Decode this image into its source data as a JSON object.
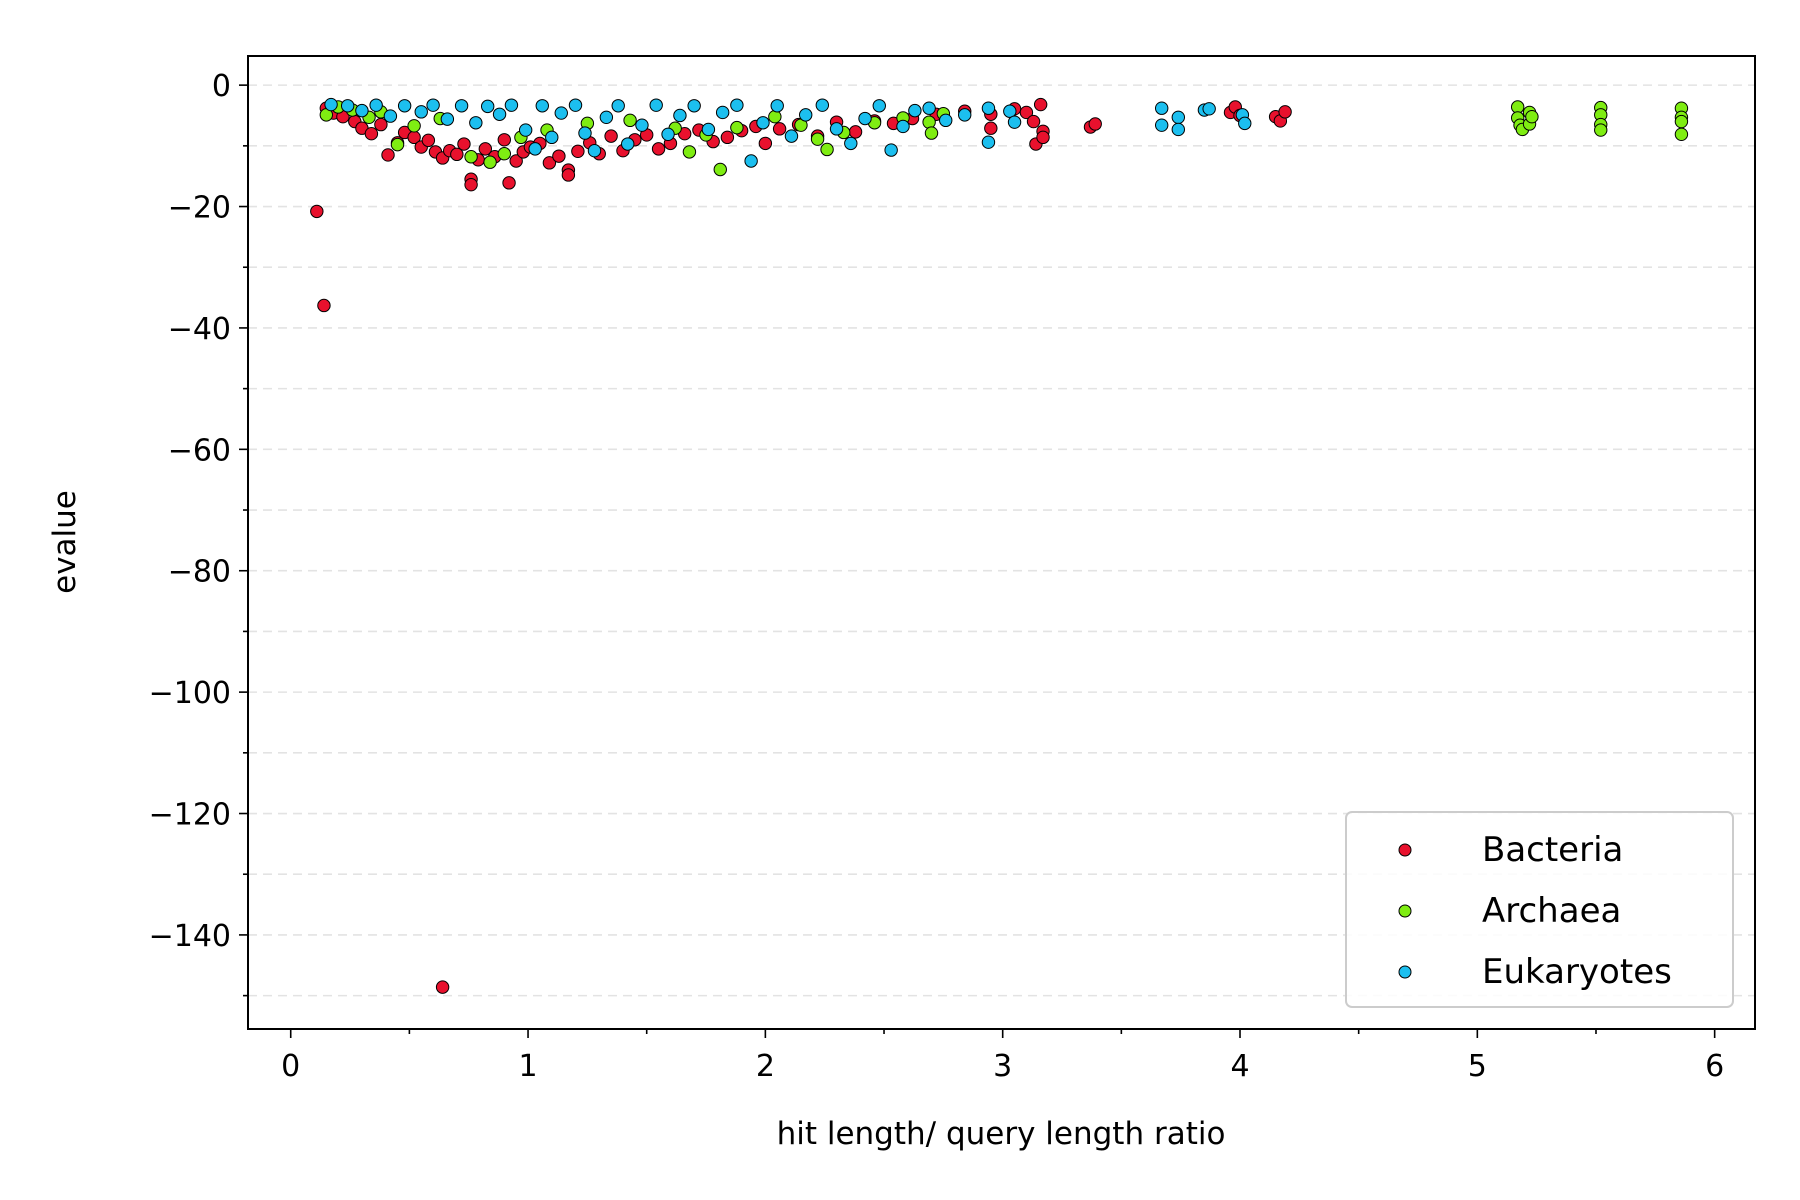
{
  "chart_data": {
    "type": "scatter",
    "xlabel": "hit length/ query length ratio",
    "ylabel": "evalue",
    "xlim": [
      -0.18,
      6.17
    ],
    "ylim": [
      -155.5,
      4.8
    ],
    "xticks": [
      0,
      1,
      2,
      3,
      4,
      5,
      6
    ],
    "xtick_labels": [
      "0",
      "1",
      "2",
      "3",
      "4",
      "5",
      "6"
    ],
    "yticks": [
      0,
      -20,
      -40,
      -60,
      -80,
      -100,
      -120,
      -140
    ],
    "ytick_labels": [
      "0",
      "−20",
      "−40",
      "−60",
      "−80",
      "−100",
      "−120",
      "−140"
    ],
    "grid": "dashed horizontal lines every 10",
    "legend_position": "lower right",
    "series": [
      {
        "name": "Bacteria",
        "color": "#e8112d",
        "points": [
          [
            0.11,
            -20.8
          ],
          [
            0.14,
            -36.3
          ],
          [
            0.64,
            -148.6
          ],
          [
            0.15,
            -3.8
          ],
          [
            0.18,
            -4.6
          ],
          [
            0.22,
            -5.2
          ],
          [
            0.27,
            -6.0
          ],
          [
            0.3,
            -7.1
          ],
          [
            0.34,
            -8.0
          ],
          [
            0.38,
            -6.5
          ],
          [
            0.41,
            -11.5
          ],
          [
            0.45,
            -9.5
          ],
          [
            0.48,
            -7.8
          ],
          [
            0.52,
            -8.6
          ],
          [
            0.55,
            -10.2
          ],
          [
            0.58,
            -9.1
          ],
          [
            0.61,
            -11.0
          ],
          [
            0.64,
            -12.0
          ],
          [
            0.67,
            -10.8
          ],
          [
            0.7,
            -11.4
          ],
          [
            0.73,
            -9.7
          ],
          [
            0.76,
            -15.5
          ],
          [
            0.76,
            -16.4
          ],
          [
            0.79,
            -12.3
          ],
          [
            0.82,
            -10.5
          ],
          [
            0.86,
            -11.8
          ],
          [
            0.9,
            -9.0
          ],
          [
            0.92,
            -16.1
          ],
          [
            0.95,
            -12.5
          ],
          [
            0.98,
            -11.0
          ],
          [
            1.01,
            -10.2
          ],
          [
            1.05,
            -9.6
          ],
          [
            1.09,
            -12.8
          ],
          [
            1.13,
            -11.7
          ],
          [
            1.17,
            -14.0
          ],
          [
            1.17,
            -14.8
          ],
          [
            1.21,
            -10.9
          ],
          [
            1.26,
            -9.5
          ],
          [
            1.3,
            -11.3
          ],
          [
            1.35,
            -8.4
          ],
          [
            1.4,
            -10.8
          ],
          [
            1.45,
            -9.0
          ],
          [
            1.5,
            -8.2
          ],
          [
            1.55,
            -10.5
          ],
          [
            1.6,
            -9.6
          ],
          [
            1.66,
            -8.0
          ],
          [
            1.72,
            -7.4
          ],
          [
            1.78,
            -9.3
          ],
          [
            1.84,
            -8.6
          ],
          [
            1.9,
            -7.5
          ],
          [
            1.96,
            -6.8
          ],
          [
            2.0,
            -9.6
          ],
          [
            2.06,
            -7.2
          ],
          [
            2.14,
            -6.5
          ],
          [
            2.22,
            -8.4
          ],
          [
            2.3,
            -6.1
          ],
          [
            2.38,
            -7.7
          ],
          [
            2.46,
            -5.9
          ],
          [
            2.54,
            -6.3
          ],
          [
            2.62,
            -5.5
          ],
          [
            2.72,
            -4.8
          ],
          [
            2.84,
            -4.3
          ],
          [
            2.95,
            -4.8
          ],
          [
            2.95,
            -7.1
          ],
          [
            3.05,
            -3.9
          ],
          [
            3.1,
            -4.5
          ],
          [
            3.13,
            -6.0
          ],
          [
            3.14,
            -9.7
          ],
          [
            3.16,
            -3.2
          ],
          [
            3.17,
            -7.6
          ],
          [
            3.17,
            -8.6
          ],
          [
            3.37,
            -6.9
          ],
          [
            3.39,
            -6.4
          ],
          [
            3.96,
            -4.5
          ],
          [
            3.98,
            -3.6
          ],
          [
            4.0,
            -5.0
          ],
          [
            4.15,
            -5.2
          ],
          [
            4.17,
            -5.9
          ],
          [
            4.19,
            -4.4
          ]
        ]
      },
      {
        "name": "Archaea",
        "color": "#7fed12",
        "points": [
          [
            0.15,
            -4.9
          ],
          [
            0.2,
            -3.6
          ],
          [
            0.26,
            -4.1
          ],
          [
            0.33,
            -5.3
          ],
          [
            0.38,
            -4.4
          ],
          [
            0.45,
            -9.8
          ],
          [
            0.52,
            -6.7
          ],
          [
            0.63,
            -5.5
          ],
          [
            0.76,
            -11.8
          ],
          [
            0.84,
            -12.7
          ],
          [
            0.9,
            -11.3
          ],
          [
            0.97,
            -8.6
          ],
          [
            1.08,
            -7.4
          ],
          [
            1.25,
            -6.3
          ],
          [
            1.43,
            -5.8
          ],
          [
            1.62,
            -7.1
          ],
          [
            1.68,
            -11.0
          ],
          [
            1.75,
            -8.2
          ],
          [
            1.81,
            -13.9
          ],
          [
            1.88,
            -7.0
          ],
          [
            2.04,
            -5.2
          ],
          [
            2.15,
            -6.6
          ],
          [
            2.22,
            -8.9
          ],
          [
            2.26,
            -10.6
          ],
          [
            2.33,
            -7.8
          ],
          [
            2.46,
            -6.2
          ],
          [
            2.58,
            -5.4
          ],
          [
            2.69,
            -6.1
          ],
          [
            2.7,
            -7.9
          ],
          [
            2.75,
            -4.7
          ],
          [
            5.17,
            -3.6
          ],
          [
            5.17,
            -5.4
          ],
          [
            5.18,
            -6.6
          ],
          [
            5.19,
            -7.3
          ],
          [
            5.22,
            -4.5
          ],
          [
            5.22,
            -6.4
          ],
          [
            5.23,
            -5.2
          ],
          [
            5.52,
            -3.7
          ],
          [
            5.52,
            -4.9
          ],
          [
            5.52,
            -6.5
          ],
          [
            5.52,
            -7.4
          ],
          [
            5.86,
            -3.8
          ],
          [
            5.86,
            -5.3
          ],
          [
            5.86,
            -6.0
          ],
          [
            5.86,
            -8.1
          ]
        ]
      },
      {
        "name": "Eukaryotes",
        "color": "#1cbfef",
        "points": [
          [
            0.17,
            -3.2
          ],
          [
            0.24,
            -3.4
          ],
          [
            0.3,
            -4.2
          ],
          [
            0.36,
            -3.3
          ],
          [
            0.42,
            -5.1
          ],
          [
            0.48,
            -3.4
          ],
          [
            0.55,
            -4.4
          ],
          [
            0.6,
            -3.3
          ],
          [
            0.66,
            -5.6
          ],
          [
            0.72,
            -3.4
          ],
          [
            0.78,
            -6.2
          ],
          [
            0.83,
            -3.5
          ],
          [
            0.88,
            -4.8
          ],
          [
            0.93,
            -3.3
          ],
          [
            0.99,
            -7.4
          ],
          [
            1.03,
            -10.5
          ],
          [
            1.06,
            -3.4
          ],
          [
            1.1,
            -8.6
          ],
          [
            1.14,
            -4.6
          ],
          [
            1.2,
            -3.3
          ],
          [
            1.24,
            -7.9
          ],
          [
            1.28,
            -10.8
          ],
          [
            1.33,
            -5.3
          ],
          [
            1.38,
            -3.4
          ],
          [
            1.42,
            -9.7
          ],
          [
            1.48,
            -6.6
          ],
          [
            1.54,
            -3.3
          ],
          [
            1.59,
            -8.1
          ],
          [
            1.64,
            -5.0
          ],
          [
            1.7,
            -3.4
          ],
          [
            1.76,
            -7.3
          ],
          [
            1.82,
            -4.5
          ],
          [
            1.88,
            -3.3
          ],
          [
            1.94,
            -12.5
          ],
          [
            1.99,
            -6.2
          ],
          [
            2.05,
            -3.4
          ],
          [
            2.11,
            -8.4
          ],
          [
            2.17,
            -4.9
          ],
          [
            2.24,
            -3.3
          ],
          [
            2.3,
            -7.2
          ],
          [
            2.36,
            -9.6
          ],
          [
            2.42,
            -5.5
          ],
          [
            2.48,
            -3.4
          ],
          [
            2.53,
            -10.7
          ],
          [
            2.58,
            -6.8
          ],
          [
            2.63,
            -4.2
          ],
          [
            2.69,
            -3.8
          ],
          [
            2.76,
            -5.8
          ],
          [
            2.84,
            -4.9
          ],
          [
            2.94,
            -3.8
          ],
          [
            2.94,
            -9.4
          ],
          [
            3.03,
            -4.3
          ],
          [
            3.05,
            -6.1
          ],
          [
            3.67,
            -3.8
          ],
          [
            3.67,
            -6.6
          ],
          [
            3.74,
            -5.3
          ],
          [
            3.74,
            -7.3
          ],
          [
            3.85,
            -4.1
          ],
          [
            3.87,
            -3.9
          ],
          [
            4.01,
            -4.9
          ],
          [
            4.02,
            -6.3
          ]
        ]
      }
    ]
  }
}
